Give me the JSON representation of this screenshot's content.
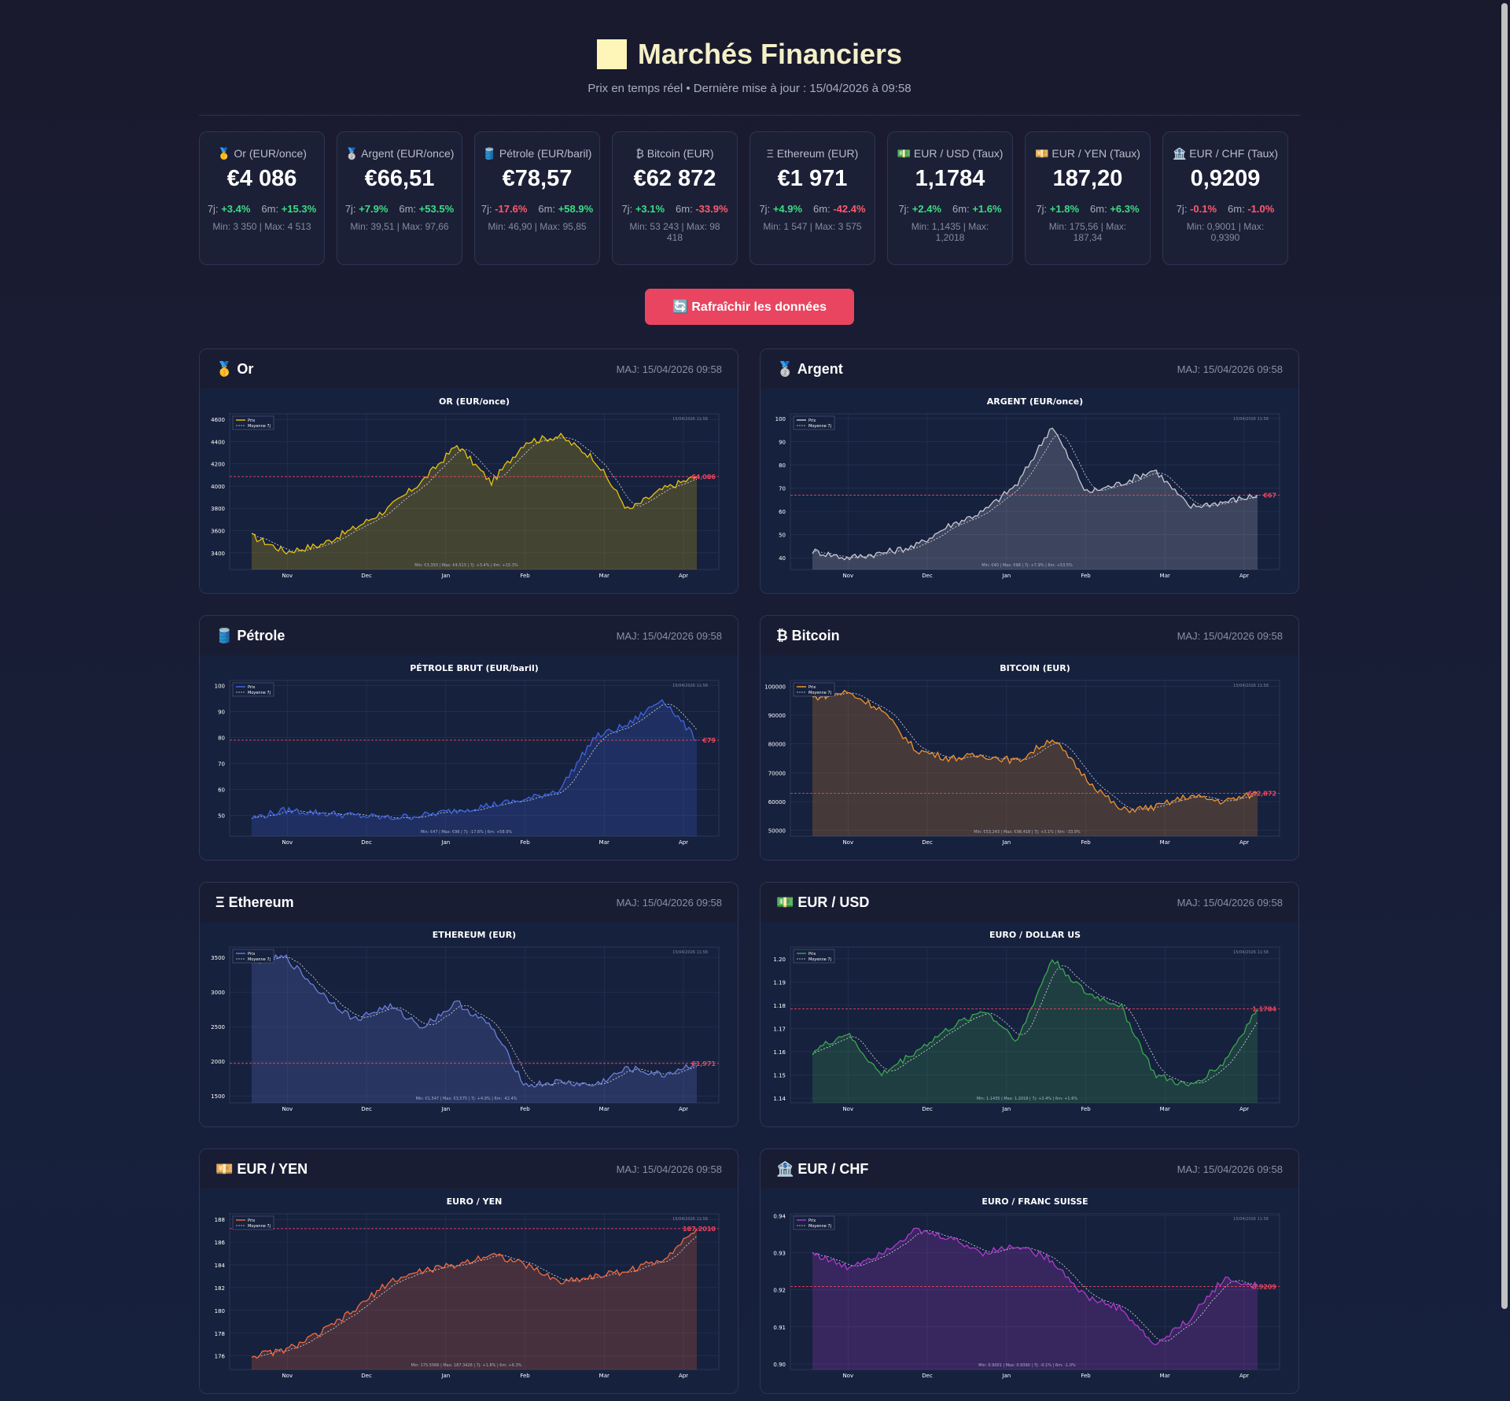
{
  "header": {
    "title": "Marchés Financiers",
    "subtitle": "Prix en temps réel • Dernière mise à jour : 15/04/2026 à 09:58"
  },
  "tiles": [
    {
      "icon": "🥇",
      "label": "Or (EUR/once)",
      "price": "€4 086",
      "w_label": "7j:",
      "w": "+3.4%",
      "m_label": "6m:",
      "m": "+15.3%",
      "range": "Min: 3 350 | Max: 4 513"
    },
    {
      "icon": "🥈",
      "label": "Argent (EUR/once)",
      "price": "€66,51",
      "w_label": "7j:",
      "w": "+7.9%",
      "m_label": "6m:",
      "m": "+53.5%",
      "range": "Min: 39,51 | Max: 97,66"
    },
    {
      "icon": "🛢️",
      "label": "Pétrole (EUR/baril)",
      "price": "€78,57",
      "w_label": "7j:",
      "w": "-17.6%",
      "m_label": "6m:",
      "m": "+58.9%",
      "range": "Min: 46,90 | Max: 95,85"
    },
    {
      "icon": "₿",
      "label": "Bitcoin (EUR)",
      "price": "€62 872",
      "w_label": "7j:",
      "w": "+3.1%",
      "m_label": "6m:",
      "m": "-33.9%",
      "range": "Min: 53 243 | Max: 98 418"
    },
    {
      "icon": "Ξ",
      "label": "Ethereum (EUR)",
      "price": "€1 971",
      "w_label": "7j:",
      "w": "+4.9%",
      "m_label": "6m:",
      "m": "-42.4%",
      "range": "Min: 1 547 | Max: 3 575"
    },
    {
      "icon": "💵",
      "label": "EUR / USD (Taux)",
      "price": "1,1784",
      "w_label": "7j:",
      "w": "+2.4%",
      "m_label": "6m:",
      "m": "+1.6%",
      "range": "Min: 1,1435 | Max: 1,2018"
    },
    {
      "icon": "💴",
      "label": "EUR / YEN (Taux)",
      "price": "187,20",
      "w_label": "7j:",
      "w": "+1.8%",
      "m_label": "6m:",
      "m": "+6.3%",
      "range": "Min: 175,56 | Max: 187,34"
    },
    {
      "icon": "🏦",
      "label": "EUR / CHF (Taux)",
      "price": "0,9209",
      "w_label": "7j:",
      "w": "-0.1%",
      "m_label": "6m:",
      "m": "-1.0%",
      "range": "Min: 0,9001 | Max: 0,9390"
    }
  ],
  "refresh_label": "🔄 Rafraîchir les données",
  "colors": {
    "accent": "#e94560",
    "positive": "#3ddc84",
    "negative": "#ff5a6e"
  },
  "chart_data": [
    {
      "type": "line",
      "card_title": "🥇 Or",
      "maj": "MAJ: 15/04/2026 09:58",
      "title": "OR (EUR/once)",
      "color": "#e8c40c",
      "current_label": "€4,086",
      "current": 4086,
      "yticks": [
        3400,
        3600,
        3800,
        4000,
        4200,
        4400,
        4600
      ],
      "ytick_labels": [
        "3400",
        "3600",
        "3800",
        "4000",
        "4200",
        "4400",
        "4600"
      ],
      "ylim": [
        3250,
        4650
      ],
      "x": [
        "Nov",
        "Dec",
        "Jan",
        "Feb",
        "Mar",
        "Apr"
      ],
      "legend": [
        "Prix",
        "Moyenne 7j"
      ],
      "timestamp": "15/04/2026 11:58",
      "footer": "Min: €3,350 | Max: €4,513 | 7j: +3.4% | 6m: +15.3%",
      "anchors": [
        3550,
        3410,
        3470,
        3620,
        3800,
        4050,
        4370,
        4030,
        4400,
        4450,
        4250,
        3780,
        3970,
        4086
      ]
    },
    {
      "type": "line",
      "card_title": "🥈 Argent",
      "maj": "MAJ: 15/04/2026 09:58",
      "title": "ARGENT (EUR/once)",
      "color": "#c8c8d0",
      "current_label": "€67",
      "current": 67,
      "yticks": [
        40,
        50,
        60,
        70,
        80,
        90,
        100
      ],
      "ytick_labels": [
        "40",
        "50",
        "60",
        "70",
        "80",
        "90",
        "100"
      ],
      "ylim": [
        35,
        102
      ],
      "x": [
        "Nov",
        "Dec",
        "Jan",
        "Feb",
        "Mar",
        "Apr"
      ],
      "legend": [
        "Prix",
        "Moyenne 7j"
      ],
      "timestamp": "15/04/2026 11:58",
      "footer": "Min: €40 | Max: €98 | 7j: +7.9% | 6m: +53.5%",
      "anchors": [
        43,
        40,
        42,
        45,
        54,
        60,
        72,
        97,
        68,
        72,
        78,
        62,
        64,
        67
      ]
    },
    {
      "type": "line",
      "card_title": "🛢️ Pétrole",
      "maj": "MAJ: 15/04/2026 09:58",
      "title": "PÉTROLE BRUT (EUR/baril)",
      "color": "#3e64e0",
      "current_label": "€79",
      "current": 79,
      "yticks": [
        50,
        60,
        70,
        80,
        90,
        100
      ],
      "ytick_labels": [
        "50",
        "60",
        "70",
        "80",
        "90",
        "100"
      ],
      "ylim": [
        42,
        102
      ],
      "x": [
        "Nov",
        "Dec",
        "Jan",
        "Feb",
        "Mar",
        "Apr"
      ],
      "legend": [
        "Prix",
        "Moyenne 7j"
      ],
      "timestamp": "15/04/2026 11:58",
      "footer": "Min: €47 | Max: €96 | 7j: -17.6% | 6m: +58.9%",
      "anchors": [
        49,
        52,
        51,
        50,
        49,
        50,
        52,
        54,
        56,
        60,
        80,
        85,
        95,
        79
      ]
    },
    {
      "type": "line",
      "card_title": "₿ Bitcoin",
      "maj": "MAJ: 15/04/2026 09:58",
      "title": "BITCOIN (EUR)",
      "color": "#f0932b",
      "current_label": "€62,872",
      "current": 62872,
      "yticks": [
        50000,
        60000,
        70000,
        80000,
        90000,
        100000
      ],
      "ytick_labels": [
        "50000",
        "60000",
        "70000",
        "80000",
        "90000",
        "100000"
      ],
      "ylim": [
        48000,
        102000
      ],
      "x": [
        "Nov",
        "Dec",
        "Jan",
        "Feb",
        "Mar",
        "Apr"
      ],
      "legend": [
        "Prix",
        "Moyenne 7j"
      ],
      "timestamp": "15/04/2026 11:58",
      "footer": "Min: €53,243 | Max: €98,418 | 7j: +3.1% | 6m: -33.9%",
      "anchors": [
        96000,
        98000,
        92000,
        78000,
        75000,
        76000,
        74000,
        82000,
        68000,
        57000,
        58000,
        62000,
        60000,
        62872
      ]
    },
    {
      "type": "line",
      "card_title": "Ξ Ethereum",
      "maj": "MAJ: 15/04/2026 09:58",
      "title": "ETHEREUM (EUR)",
      "color": "#6a7fdb",
      "current_label": "€1,971",
      "current": 1971,
      "yticks": [
        1500,
        2000,
        2500,
        3000,
        3500
      ],
      "ytick_labels": [
        "1500",
        "2000",
        "2500",
        "3000",
        "3500"
      ],
      "ylim": [
        1400,
        3650
      ],
      "x": [
        "Nov",
        "Dec",
        "Jan",
        "Feb",
        "Mar",
        "Apr"
      ],
      "legend": [
        "Prix",
        "Moyenne 7j"
      ],
      "timestamp": "15/04/2026 11:58",
      "footer": "Min: €1,547 | Max: €3,575 | 7j: +4.9% | 6m: -42.4%",
      "anchors": [
        3450,
        3500,
        3000,
        2600,
        2800,
        2500,
        2850,
        2500,
        1650,
        1700,
        1650,
        1900,
        1800,
        1971
      ]
    },
    {
      "type": "line",
      "card_title": "💵 EUR / USD",
      "maj": "MAJ: 15/04/2026 09:58",
      "title": "EURO / DOLLAR US",
      "color": "#3aa84e",
      "current_label": "1.1784",
      "current": 1.1784,
      "yticks": [
        1.14,
        1.15,
        1.16,
        1.17,
        1.18,
        1.19,
        1.2
      ],
      "ytick_labels": [
        "1.14",
        "1.15",
        "1.16",
        "1.17",
        "1.18",
        "1.19",
        "1.20"
      ],
      "ylim": [
        1.138,
        1.205
      ],
      "x": [
        "Nov",
        "Dec",
        "Jan",
        "Feb",
        "Mar",
        "Apr"
      ],
      "legend": [
        "Prix",
        "Moyenne 7j"
      ],
      "timestamp": "15/04/2026 11:58",
      "footer": "Min: 1.1435 | Max: 1.2018 | 7j: +2.4% | 6m: +1.6%",
      "anchors": [
        1.16,
        1.168,
        1.15,
        1.16,
        1.17,
        1.178,
        1.165,
        1.2,
        1.185,
        1.18,
        1.15,
        1.145,
        1.155,
        1.1784
      ]
    },
    {
      "type": "line",
      "card_title": "💴 EUR / YEN",
      "maj": "MAJ: 15/04/2026 09:58",
      "title": "EURO / YEN",
      "color": "#f26a3d",
      "current_label": "187.2010",
      "current": 187.201,
      "yticks": [
        176,
        178,
        180,
        182,
        184,
        186,
        188
      ],
      "ytick_labels": [
        "176",
        "178",
        "180",
        "182",
        "184",
        "186",
        "188"
      ],
      "ylim": [
        174.8,
        188.5
      ],
      "x": [
        "Nov",
        "Dec",
        "Jan",
        "Feb",
        "Mar",
        "Apr"
      ],
      "legend": [
        "Prix",
        "Moyenne 7j"
      ],
      "timestamp": "15/04/2026 11:58",
      "footer": "Min: 175.5566 | Max: 187.3426 | 7j: +1.8% | 6m: +6.3%",
      "anchors": [
        176,
        176.5,
        178,
        180,
        182.5,
        183.5,
        184,
        185,
        184,
        182.5,
        183,
        183.5,
        184.5,
        187.2
      ]
    },
    {
      "type": "line",
      "card_title": "🏦 EUR / CHF",
      "maj": "MAJ: 15/04/2026 09:58",
      "title": "EURO / FRANC SUISSE",
      "color": "#b03ad0",
      "current_label": "0.9209",
      "current": 0.9209,
      "yticks": [
        0.9,
        0.91,
        0.92,
        0.93,
        0.94
      ],
      "ytick_labels": [
        "0.90",
        "0.91",
        "0.92",
        "0.93",
        "0.94"
      ],
      "ylim": [
        0.8985,
        0.9405
      ],
      "x": [
        "Nov",
        "Dec",
        "Jan",
        "Feb",
        "Mar",
        "Apr"
      ],
      "legend": [
        "Prix",
        "Moyenne 7j"
      ],
      "timestamp": "15/04/2026 11:58",
      "footer": "Min: 0.9001 | Max: 0.9390 | 7j: -0.1% | 6m: -1.0%",
      "anchors": [
        0.93,
        0.926,
        0.93,
        0.936,
        0.934,
        0.93,
        0.932,
        0.928,
        0.918,
        0.915,
        0.905,
        0.912,
        0.923,
        0.9209
      ]
    }
  ]
}
